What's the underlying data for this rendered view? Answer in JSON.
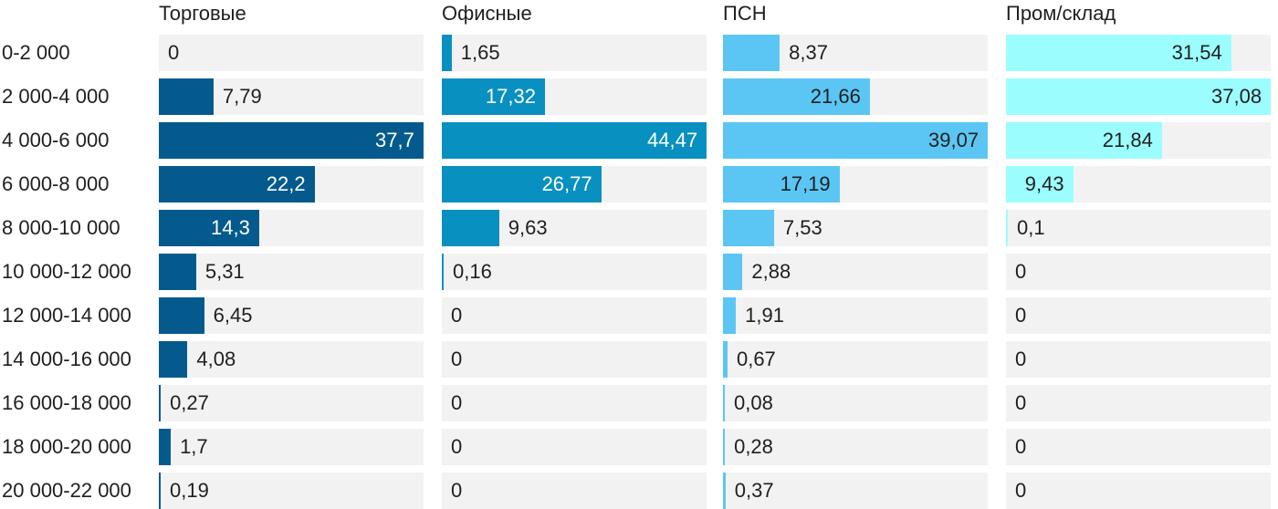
{
  "chart_data": {
    "type": "bar",
    "orientation": "horizontal",
    "layout": "small-multiples",
    "categories": [
      "0-2 000",
      "2 000-4 000",
      "4 000-6 000",
      "6 000-8 000",
      "8 000-10 000",
      "10 000-12 000",
      "12 000-14 000",
      "14 000-16 000",
      "16 000-18 000",
      "18 000-20 000",
      "20 000-22 000"
    ],
    "series": [
      {
        "name": "Торговые",
        "color": "#045a8d",
        "labels": [
          "0",
          "7,79",
          "37,7",
          "22,2",
          "14,3",
          "5,31",
          "6,45",
          "4,08",
          "0,27",
          "1,7",
          "0,19"
        ],
        "values": [
          0,
          7.79,
          37.7,
          22.2,
          14.3,
          5.31,
          6.45,
          4.08,
          0.27,
          1.7,
          0.19
        ]
      },
      {
        "name": "Офисные",
        "color": "#0890c0",
        "labels": [
          "1,65",
          "17,32",
          "44,47",
          "26,77",
          "9,63",
          "0,16",
          "0",
          "0",
          "0",
          "0",
          "0"
        ],
        "values": [
          1.65,
          17.32,
          44.47,
          26.77,
          9.63,
          0.16,
          0,
          0,
          0,
          0,
          0
        ]
      },
      {
        "name": "ПСН",
        "color": "#5bc6f4",
        "labels": [
          "8,37",
          "21,66",
          "39,07",
          "17,19",
          "7,53",
          "2,88",
          "1,91",
          "0,67",
          "0,08",
          "0,28",
          "0,37"
        ],
        "values": [
          8.37,
          21.66,
          39.07,
          17.19,
          7.53,
          2.88,
          1.91,
          0.67,
          0.08,
          0.28,
          0.37
        ]
      },
      {
        "name": "Пром/склад",
        "color": "#9cfdff",
        "labels": [
          "31,54",
          "37,08",
          "21,84",
          "9,43",
          "0,1",
          "0",
          "0",
          "0",
          "0",
          "0",
          "0"
        ],
        "values": [
          31.54,
          37.08,
          21.84,
          9.43,
          0.1,
          0,
          0,
          0,
          0,
          0,
          0
        ]
      }
    ],
    "scale_max": [
      37.7,
      44.47,
      39.07,
      37.08
    ],
    "track_color": "#f2f2f2",
    "label_color_inside": [
      "#ffffff",
      "#ffffff",
      "#1f1f1f",
      "#1f1f1f"
    ],
    "label_color_outside": "#1f1f1f",
    "grid": false,
    "legend": "none"
  }
}
